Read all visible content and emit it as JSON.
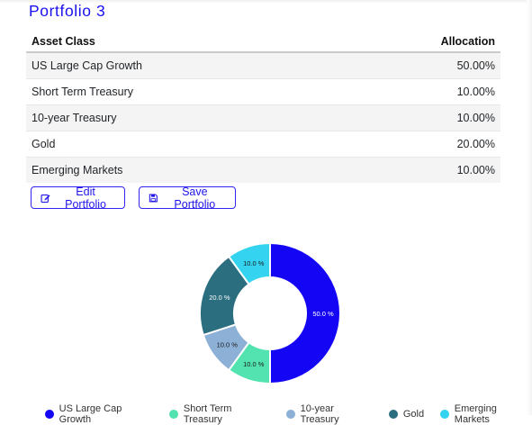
{
  "portfolio": {
    "title": "Portfolio 3"
  },
  "table": {
    "headers": {
      "asset_class": "Asset Class",
      "allocation": "Allocation"
    },
    "rows": [
      {
        "asset": "US Large Cap Growth",
        "allocation": "50.00%"
      },
      {
        "asset": "Short Term Treasury",
        "allocation": "10.00%"
      },
      {
        "asset": "10-year Treasury",
        "allocation": "10.00%"
      },
      {
        "asset": "Gold",
        "allocation": "20.00%"
      },
      {
        "asset": "Emerging Markets",
        "allocation": "10.00%"
      }
    ]
  },
  "buttons": {
    "edit_label": "Edit Portfolio",
    "save_label": "Save Portfolio"
  },
  "colors": {
    "title": "#1b10ee",
    "button": "#2115e8",
    "series": [
      "#1505f5",
      "#52e3b0",
      "#8cb0d6",
      "#2b6e80",
      "#34d4f0"
    ]
  },
  "chart_data": {
    "type": "pie",
    "categories": [
      "US Large Cap Growth",
      "Short Term Treasury",
      "10-year Treasury",
      "Gold",
      "Emerging Markets"
    ],
    "values": [
      50.0,
      10.0,
      10.0,
      20.0,
      10.0
    ],
    "labels": [
      "50.0 %",
      "10.0 %",
      "10.0 %",
      "20.0 %",
      "10.0 %"
    ],
    "donut": true,
    "legend_position": "bottom"
  }
}
